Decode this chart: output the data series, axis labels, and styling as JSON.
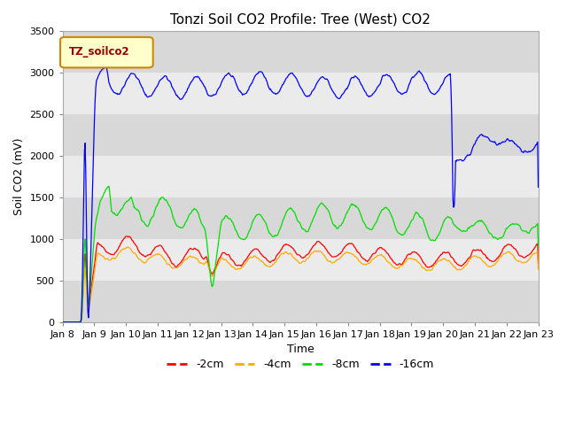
{
  "title": "Tonzi Soil CO2 Profile: Tree (West) CO2",
  "ylabel": "Soil CO2 (mV)",
  "xlabel": "Time",
  "ylim": [
    0,
    3500
  ],
  "yticks": [
    0,
    500,
    1000,
    1500,
    2000,
    2500,
    3000,
    3500
  ],
  "xticklabels": [
    "Jan 8",
    "Jan 9",
    "Jan 10",
    "Jan 11",
    "Jan 12",
    "Jan 13",
    "Jan 14",
    "Jan 15",
    "Jan 16",
    "Jan 17",
    "Jan 18",
    "Jan 19",
    "Jan 20",
    "Jan 21",
    "Jan 22",
    "Jan 23"
  ],
  "legend_label": "TZ_soilco2",
  "line_colors": [
    "#ff0000",
    "#ffaa00",
    "#00dd00",
    "#0000ff"
  ],
  "line_labels": [
    "-2cm",
    "-4cm",
    "-8cm",
    "-16cm"
  ],
  "bg_color": "#ffffff",
  "plot_bg_light": "#ebebeb",
  "plot_bg_dark": "#d8d8d8",
  "title_fontsize": 11,
  "axis_fontsize": 9,
  "tick_fontsize": 8,
  "legend_fontsize": 9
}
